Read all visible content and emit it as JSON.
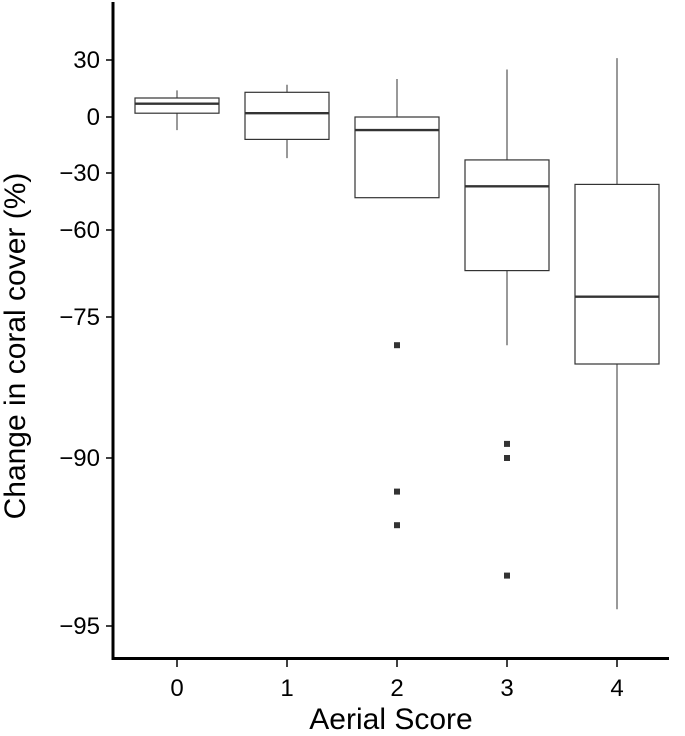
{
  "chart_data": {
    "type": "boxplot",
    "xlabel": "Aerial Score",
    "ylabel": "Change in coral cover (%)",
    "y_scale": "transformed (expanded near -95 to -75)",
    "y_ticks": [
      30,
      0,
      -30,
      -60,
      -75,
      -90,
      -95
    ],
    "y_tick_labels": [
      "30",
      "0",
      "−30",
      "−60",
      "−75",
      "−90",
      "−95"
    ],
    "ylim": [
      -96,
      50
    ],
    "categories": [
      "0",
      "1",
      "2",
      "3",
      "4"
    ],
    "boxes": [
      {
        "category": "0",
        "whisker_low": -7,
        "q1": 2,
        "median": 7,
        "q3": 10,
        "whisker_high": 14,
        "outliers": []
      },
      {
        "category": "1",
        "whisker_low": -22,
        "q1": -12,
        "median": 2,
        "q3": 13,
        "whisker_high": 17,
        "outliers": []
      },
      {
        "category": "2",
        "whisker_low": -43,
        "q1": -43,
        "median": -7,
        "q3": 0,
        "whisker_high": 20,
        "outliers": [
          -78,
          -91,
          -92
        ]
      },
      {
        "category": "3",
        "whisker_low": -78,
        "q1": -67,
        "median": -37,
        "q3": -23,
        "whisker_high": 25,
        "outliers": [
          -88.5,
          -90,
          -93.5
        ]
      },
      {
        "category": "4",
        "whisker_low": -94.5,
        "q1": -80,
        "median": -71.5,
        "q3": -36,
        "whisker_high": 31,
        "outliers": []
      }
    ],
    "grid": false,
    "colors": {
      "box_fill": "#ffffff",
      "box_stroke": "#333333",
      "axis": "#000000"
    }
  }
}
